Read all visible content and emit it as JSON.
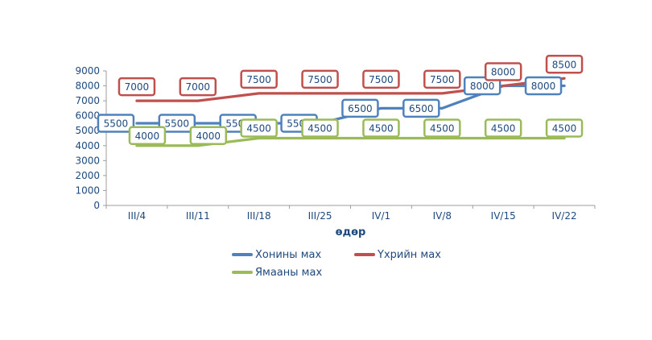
{
  "chart_data": {
    "type": "line",
    "categories": [
      "III/4",
      "III/11",
      "III/18",
      "III/25",
      "IV/1",
      "IV/8",
      "IV/15",
      "IV/22"
    ],
    "series": [
      {
        "name": "Хонины мах",
        "color": "#4F81BD",
        "values": [
          5500,
          5500,
          5500,
          5500,
          6500,
          6500,
          8000,
          8000
        ],
        "label_position": "left"
      },
      {
        "name": "Үхрийн мах",
        "color": "#C0504D",
        "values": [
          7000,
          7000,
          7500,
          7500,
          7500,
          7500,
          8000,
          8500
        ],
        "label_position": "above"
      },
      {
        "name": "Ямааны мах",
        "color": "#9BBB59",
        "values": [
          4000,
          4000,
          4500,
          4500,
          4500,
          4500,
          4500,
          4500
        ],
        "label_position": "above_near",
        "label_dx": [
          13,
          13,
          0,
          0,
          0,
          0,
          0,
          0
        ]
      }
    ],
    "xlabel": "өдөр",
    "ylim": [
      0,
      9000
    ],
    "ytick_step": 1000,
    "grid": false,
    "data_labels": true,
    "legend_position": "bottom",
    "colors": {
      "text": "#1F497D",
      "axis": "#9C9C9C",
      "background": "#FFFFFF"
    }
  }
}
